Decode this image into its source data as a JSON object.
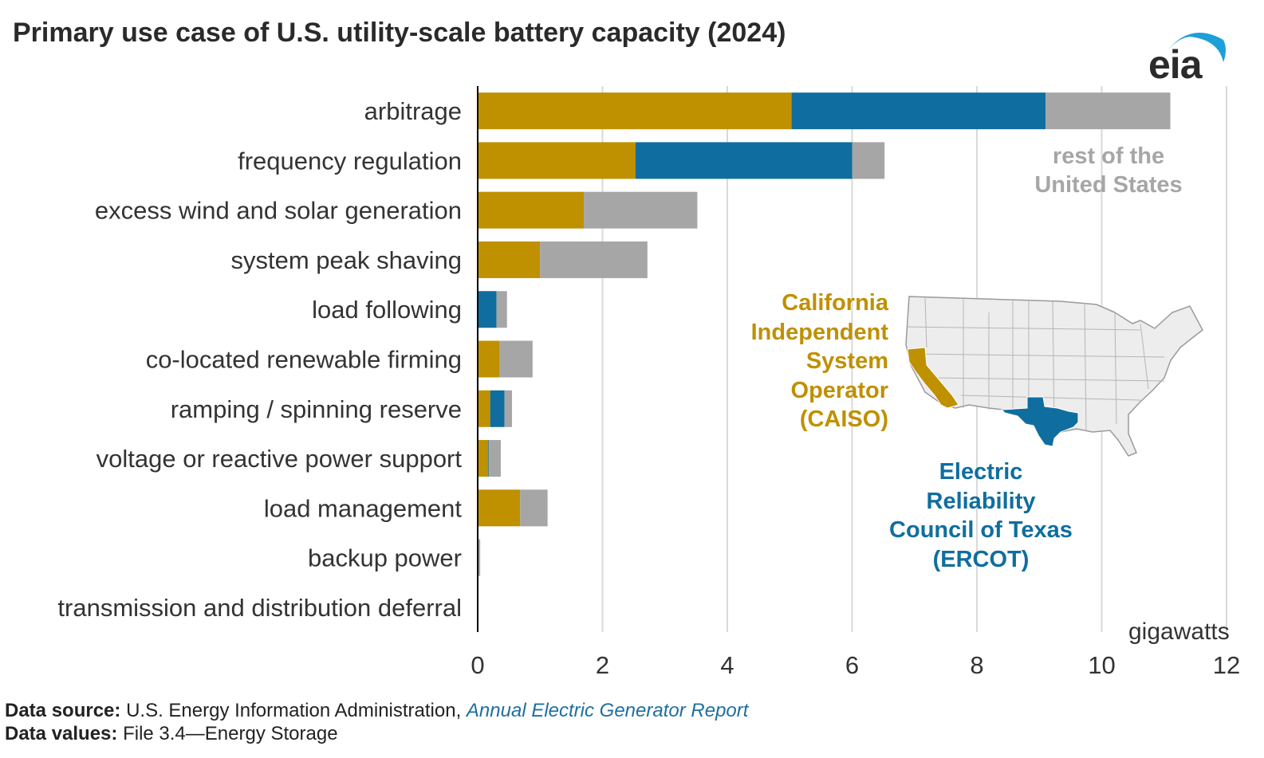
{
  "title": "Primary use case of U.S. utility-scale battery capacity (2024)",
  "logo_text": "eia",
  "colors": {
    "caiso": "#bf9000",
    "ercot": "#0f6e9f",
    "rest": "#a6a6a6",
    "grid": "#d9d9d9",
    "axis": "#000000"
  },
  "chart_data": {
    "type": "bar",
    "orientation": "horizontal",
    "stacked": true,
    "title": "Primary use case of U.S. utility-scale battery capacity (2024)",
    "xlabel": "gigawatts",
    "xlim": [
      0,
      12
    ],
    "xticks": [
      0,
      2,
      4,
      6,
      8,
      10,
      12
    ],
    "grid": true,
    "categories": [
      "arbitrage",
      "frequency regulation",
      "excess wind and solar generation",
      "system peak shaving",
      "load following",
      "co-located renewable firming",
      "ramping / spinning reserve",
      "voltage or reactive power support",
      "load management",
      "backup power",
      "transmission and distribution deferral"
    ],
    "series": [
      {
        "name": "California Independent System Operator (CAISO)",
        "color": "#bf9000",
        "values": [
          5.03,
          2.53,
          1.7,
          1.0,
          0.0,
          0.35,
          0.2,
          0.17,
          0.68,
          0.0,
          0.0
        ]
      },
      {
        "name": "Electric Reliability Council of Texas (ERCOT)",
        "color": "#0f6e9f",
        "values": [
          4.07,
          3.47,
          0.0,
          0.0,
          0.3,
          0.0,
          0.23,
          0.01,
          0.0,
          0.0,
          0.0
        ]
      },
      {
        "name": "rest of the United States",
        "color": "#a6a6a6",
        "values": [
          2.0,
          0.52,
          1.82,
          1.72,
          0.17,
          0.53,
          0.12,
          0.19,
          0.44,
          0.04,
          0.0
        ]
      }
    ],
    "legend_labels": {
      "rest": [
        "rest of the",
        "United States"
      ],
      "caiso": [
        "California",
        "Independent",
        "System",
        "Operator",
        "(CAISO)"
      ],
      "ercot": [
        "Electric",
        "Reliability",
        "Council of Texas",
        "(ERCOT)"
      ]
    }
  },
  "footer": {
    "source_label": "Data source:",
    "source_text": "U.S. Energy Information Administration, ",
    "source_link": "Annual Electric Generator Report",
    "values_label": "Data values:",
    "values_text": "File 3.4—Energy Storage"
  }
}
